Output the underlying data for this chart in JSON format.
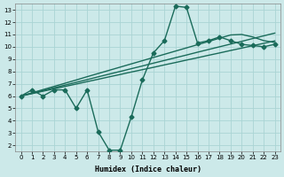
{
  "xlabel": "Humidex (Indice chaleur)",
  "xlim": [
    -0.5,
    23.5
  ],
  "ylim": [
    1.5,
    13.5
  ],
  "xticks": [
    0,
    1,
    2,
    3,
    4,
    5,
    6,
    7,
    8,
    9,
    10,
    11,
    12,
    13,
    14,
    15,
    16,
    17,
    18,
    19,
    20,
    21,
    22,
    23
  ],
  "yticks": [
    2,
    3,
    4,
    5,
    6,
    7,
    8,
    9,
    10,
    11,
    12,
    13
  ],
  "bg": "#cce9e9",
  "grid_color": "#aad4d4",
  "line_color": "#1a6b5a",
  "straight_lines": [
    [
      6.0,
      6.19,
      6.39,
      6.58,
      6.78,
      6.97,
      7.17,
      7.36,
      7.56,
      7.75,
      7.95,
      8.14,
      8.33,
      8.53,
      8.72,
      8.92,
      9.11,
      9.31,
      9.5,
      9.7,
      9.89,
      10.09,
      10.28,
      10.48
    ],
    [
      6.0,
      6.22,
      6.44,
      6.67,
      6.89,
      7.11,
      7.33,
      7.56,
      7.78,
      8.0,
      8.22,
      8.44,
      8.67,
      8.89,
      9.11,
      9.33,
      9.56,
      9.78,
      10.0,
      10.22,
      10.44,
      10.67,
      10.89,
      11.11
    ],
    [
      6.0,
      6.26,
      6.52,
      6.78,
      7.04,
      7.3,
      7.57,
      7.83,
      8.09,
      8.35,
      8.61,
      8.87,
      9.13,
      9.39,
      9.65,
      9.91,
      10.17,
      10.43,
      10.7,
      10.96,
      11.0,
      10.8,
      10.5,
      10.35
    ]
  ],
  "zigzag_x": [
    0,
    1,
    2,
    3,
    4,
    5,
    6,
    7,
    8,
    9,
    10,
    11,
    12,
    13,
    14,
    15,
    16,
    17,
    18,
    19,
    20,
    21,
    22,
    23
  ],
  "zigzag_y": [
    6.0,
    6.5,
    6.0,
    6.5,
    6.5,
    5.0,
    6.5,
    3.1,
    1.6,
    1.6,
    4.3,
    7.3,
    9.5,
    10.5,
    13.3,
    13.2,
    10.3,
    10.5,
    10.8,
    10.5,
    10.2,
    10.1,
    10.0,
    10.2
  ],
  "marker": "D",
  "marker_size": 2.5,
  "linewidth": 1.0,
  "tick_fontsize": 5,
  "label_fontsize": 6
}
